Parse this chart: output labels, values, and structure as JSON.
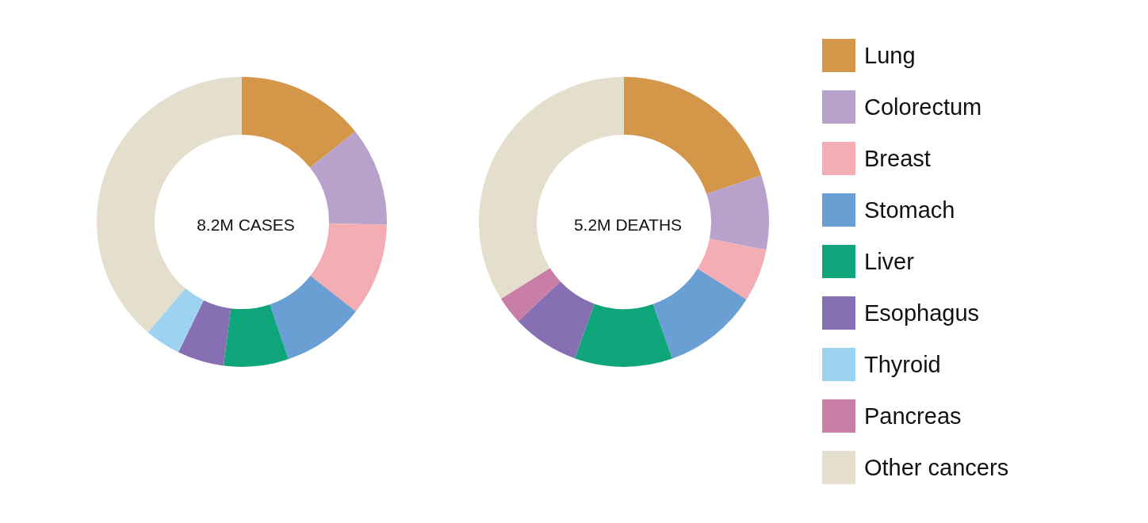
{
  "chart_data": {
    "type": "donut",
    "categories": [
      "Lung",
      "Colorectum",
      "Breast",
      "Stomach",
      "Liver",
      "Esophagus",
      "Thyroid",
      "Pancreas",
      "Other cancers"
    ],
    "colors": [
      "#d4974a",
      "#b8a2cc",
      "#f5adb4",
      "#6a9fd4",
      "#0ea57a",
      "#8670b3",
      "#9dd3f0",
      "#c87ea6",
      "#e3dfcc"
    ],
    "legend": "right",
    "series": [
      {
        "name": "8.2M CASES",
        "values": [
          14.3,
          11,
          10.3,
          9.2,
          7.2,
          5.2,
          4,
          null,
          38.8
        ]
      },
      {
        "name": "5.2M DEATHS",
        "values": [
          19.8,
          8.3,
          5.9,
          10.6,
          10.9,
          7.5,
          null,
          3.1,
          33.9
        ]
      }
    ]
  }
}
